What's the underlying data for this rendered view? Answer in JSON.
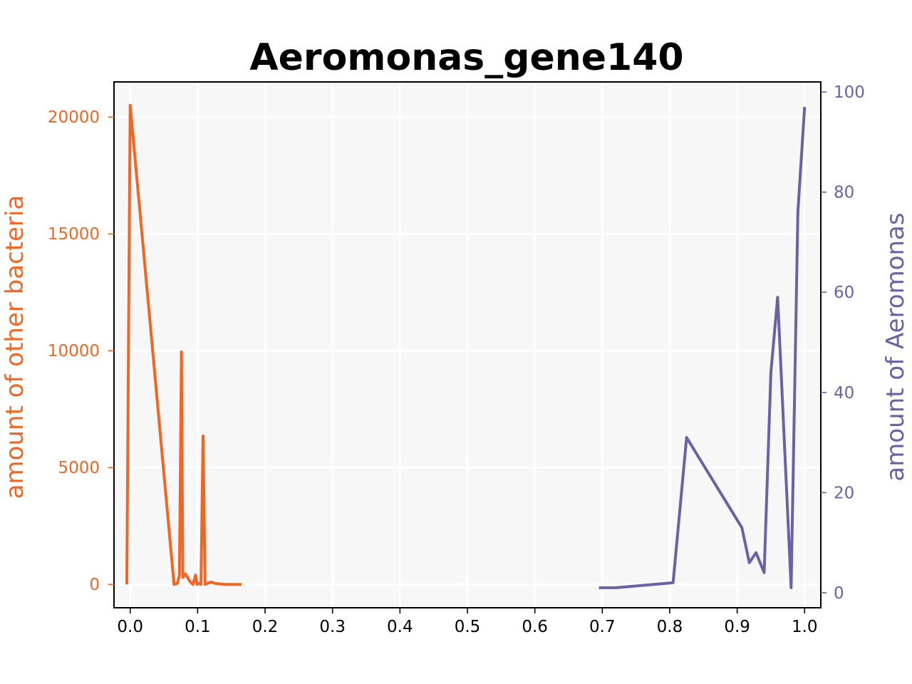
{
  "chart_data": {
    "type": "line",
    "title": "Aeromonas_gene140",
    "xlabel": "",
    "xlim": [
      -0.024,
      1.024
    ],
    "xticks": [
      0.0,
      0.1,
      0.2,
      0.3,
      0.4,
      0.5,
      0.6,
      0.7,
      0.8,
      0.9,
      1.0
    ],
    "xtick_labels": [
      "0.0",
      "0.1",
      "0.2",
      "0.3",
      "0.4",
      "0.5",
      "0.6",
      "0.7",
      "0.8",
      "0.9",
      "1.0"
    ],
    "grid": true,
    "background": "#f7f7f7",
    "y_left": {
      "label": "amount of other bacteria",
      "color": "#f26522",
      "ylim": [
        -1000,
        21500
      ],
      "ticks": [
        0,
        5000,
        10000,
        15000,
        20000
      ],
      "tick_labels": [
        "0",
        "5000",
        "10000",
        "15000",
        "20000"
      ]
    },
    "y_right": {
      "label": "amount of Aeromonas",
      "color": "#6b62a5",
      "ylim": [
        -3,
        102
      ],
      "ticks": [
        0,
        20,
        40,
        60,
        80,
        100
      ],
      "tick_labels": [
        "0",
        "20",
        "40",
        "60",
        "80",
        "100"
      ]
    },
    "series": [
      {
        "axis": "left",
        "color": "#f26522",
        "x": [
          -0.005,
          0.0,
          0.065,
          0.07,
          0.073,
          0.076,
          0.078,
          0.082,
          0.088,
          0.093,
          0.097,
          0.099,
          0.101,
          0.105,
          0.108,
          0.111,
          0.115,
          0.12,
          0.125,
          0.13,
          0.14,
          0.15,
          0.165
        ],
        "y": [
          0,
          20500,
          0,
          50,
          400,
          9950,
          300,
          450,
          150,
          0,
          400,
          0,
          50,
          0,
          6350,
          0,
          50,
          100,
          50,
          30,
          0,
          0,
          0
        ]
      },
      {
        "axis": "right",
        "color": "#6b62a5",
        "x": [
          0.695,
          0.72,
          0.805,
          0.825,
          0.907,
          0.918,
          0.928,
          0.94,
          0.95,
          0.96,
          0.98,
          0.99,
          1.0
        ],
        "y": [
          1,
          1,
          2,
          31,
          13,
          6,
          8,
          4,
          44,
          59,
          1,
          76,
          97
        ]
      }
    ]
  }
}
